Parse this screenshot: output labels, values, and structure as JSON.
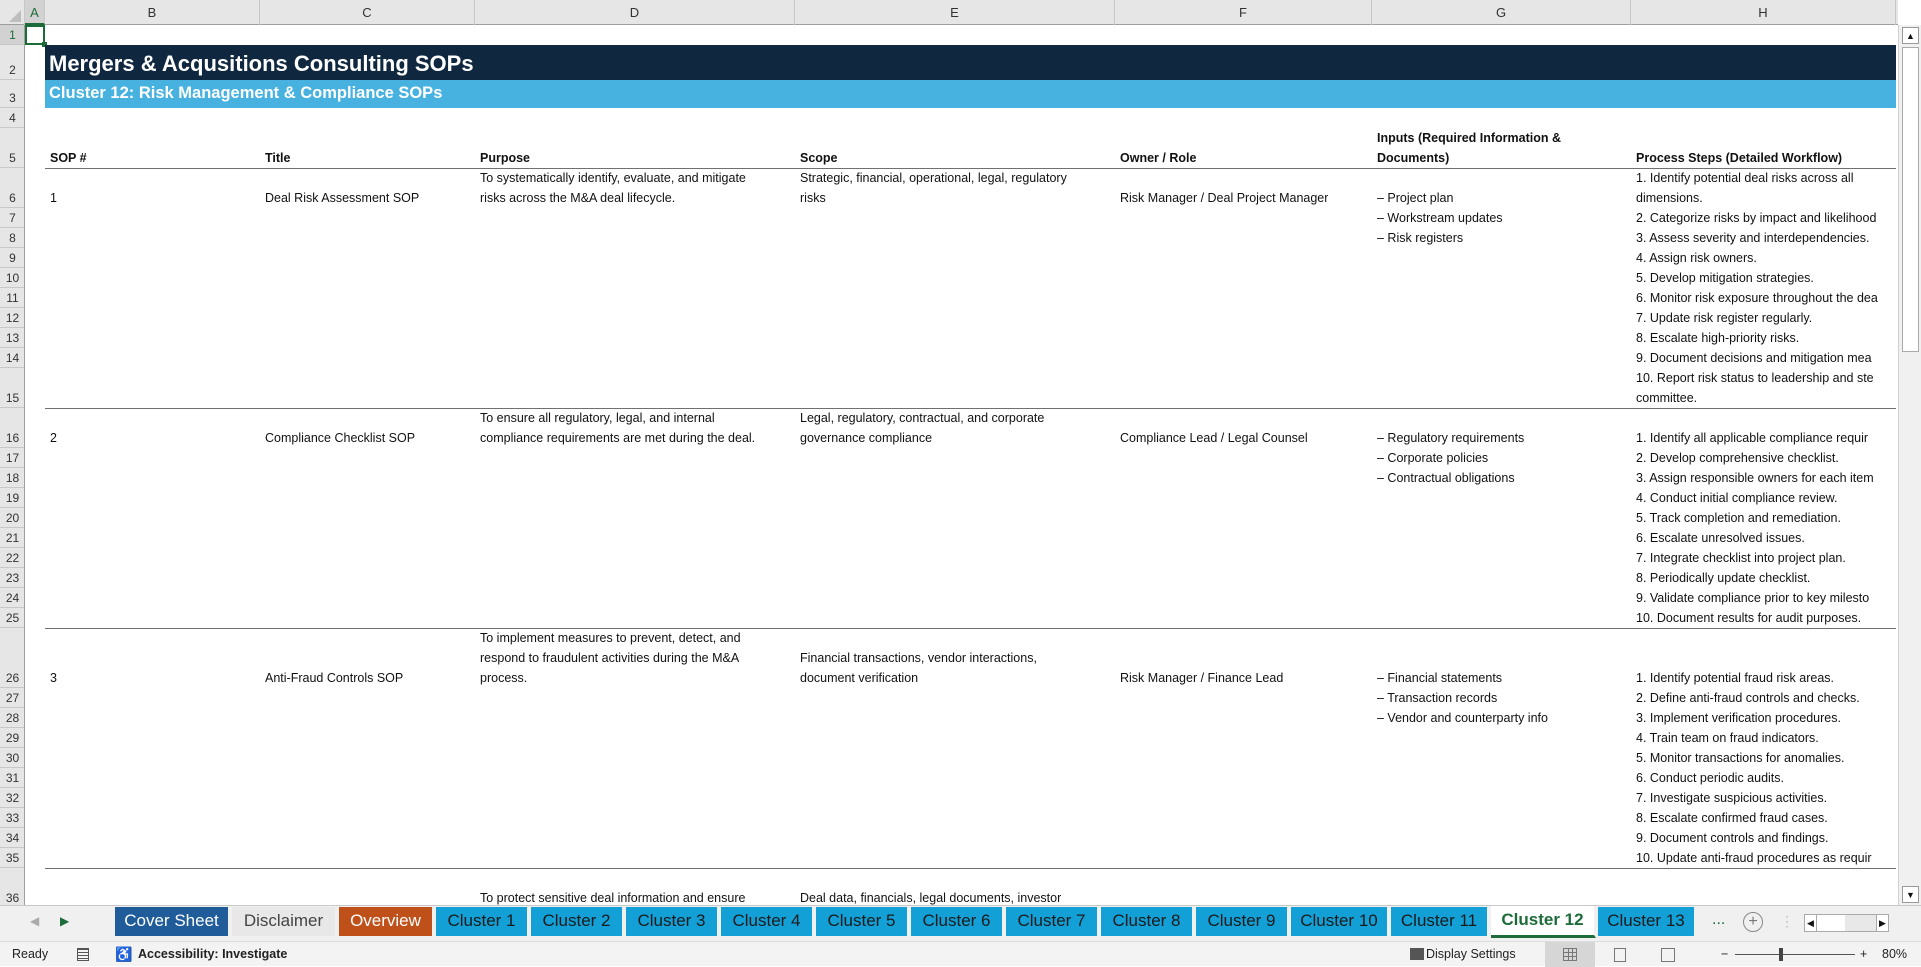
{
  "columns": [
    "A",
    "B",
    "C",
    "D",
    "E",
    "F",
    "G",
    "H"
  ],
  "rows": [
    "1",
    "2",
    "3",
    "4",
    "5",
    "6",
    "7",
    "8",
    "9",
    "10",
    "11",
    "12",
    "13",
    "14",
    "15",
    "16",
    "17",
    "18",
    "19",
    "20",
    "21",
    "22",
    "23",
    "24",
    "25",
    "26",
    "27",
    "28",
    "29",
    "30",
    "31",
    "32",
    "33",
    "34",
    "35",
    "36"
  ],
  "sheet": {
    "title": "Mergers & Acqusitions Consulting SOPs",
    "subtitle": "Cluster 12: Risk Management & Compliance SOPs",
    "colors": {
      "title_bg": "#10283f",
      "subtitle_bg": "#47b2e0"
    },
    "headers": [
      "SOP #",
      "Title",
      "Purpose",
      "Scope",
      "Owner / Role",
      "Inputs (Required Information &",
      "Documents)",
      "Process Steps (Detailed Workflow)"
    ],
    "sops": [
      {
        "number": "1",
        "title": "Deal Risk Assessment SOP",
        "purpose": [
          "To systematically identify, evaluate, and mitigate",
          "risks across the M&A deal lifecycle."
        ],
        "scope": [
          "Strategic, financial, operational, legal, regulatory",
          "risks"
        ],
        "owner": "Risk Manager / Deal Project Manager",
        "inputs": [
          "– Project plan",
          "– Workstream updates",
          "– Risk registers"
        ],
        "steps": [
          "1. Identify potential deal risks across all",
          "dimensions.",
          "2. Categorize risks by impact and likelihood",
          "3. Assess severity and interdependencies.",
          "4. Assign risk owners.",
          "5. Develop mitigation strategies.",
          "6. Monitor risk exposure throughout the dea",
          "7. Update risk register regularly.",
          "8. Escalate high-priority risks.",
          "9. Document decisions and mitigation mea",
          "10. Report risk status to leadership and ste",
          "committee."
        ]
      },
      {
        "number": "2",
        "title": "Compliance Checklist SOP",
        "purpose": [
          "To ensure all regulatory, legal, and internal",
          "compliance requirements are met during the deal."
        ],
        "scope": [
          "Legal, regulatory, contractual, and corporate",
          "governance compliance"
        ],
        "owner": "Compliance Lead / Legal Counsel",
        "inputs": [
          "– Regulatory requirements",
          "– Corporate policies",
          "– Contractual obligations"
        ],
        "steps": [
          "1. Identify all applicable compliance requir",
          "2. Develop comprehensive checklist.",
          "3. Assign responsible owners for each item",
          "4. Conduct initial compliance review.",
          "5. Track completion and remediation.",
          "6. Escalate unresolved issues.",
          "7. Integrate checklist into project plan.",
          "8. Periodically update checklist.",
          "9. Validate compliance prior to key milesto",
          "10. Document results for audit purposes."
        ]
      },
      {
        "number": "3",
        "title": "Anti-Fraud Controls SOP",
        "purpose": [
          "To implement measures to prevent, detect, and",
          "respond to fraudulent activities during the M&A",
          "process."
        ],
        "scope": [
          "Financial transactions, vendor interactions,",
          "document verification"
        ],
        "owner": "Risk Manager / Finance Lead",
        "inputs": [
          "– Financial statements",
          "– Transaction records",
          "– Vendor and counterparty info"
        ],
        "steps": [
          "1. Identify potential fraud risk areas.",
          "2. Define anti-fraud controls and checks.",
          "3. Implement verification procedures.",
          "4. Train team on fraud indicators.",
          "5. Monitor transactions for anomalies.",
          "6. Conduct periodic audits.",
          "7. Investigate suspicious activities.",
          "8. Escalate confirmed fraud cases.",
          "9. Document controls and findings.",
          "10. Update anti-fraud procedures as requir"
        ]
      },
      {
        "purpose": [
          "To protect sensitive deal information and ensure"
        ],
        "scope": [
          "Deal data, financials, legal documents, investor"
        ]
      }
    ]
  },
  "tabs": [
    {
      "label": "Cover Sheet",
      "bg": "#1f5c99",
      "fg": "#ffffff"
    },
    {
      "label": "Disclaimer",
      "bg": "#e8e8e8",
      "fg": "#444444"
    },
    {
      "label": "Overview",
      "bg": "#c0501a",
      "fg": "#ffffff"
    },
    {
      "label": "Cluster 1",
      "bg": "#12a0d7",
      "fg": "#1a1a1a"
    },
    {
      "label": "Cluster 2",
      "bg": "#12a0d7",
      "fg": "#1a1a1a"
    },
    {
      "label": "Cluster 3",
      "bg": "#12a0d7",
      "fg": "#1a1a1a"
    },
    {
      "label": "Cluster 4",
      "bg": "#12a0d7",
      "fg": "#1a1a1a"
    },
    {
      "label": "Cluster 5",
      "bg": "#12a0d7",
      "fg": "#1a1a1a"
    },
    {
      "label": "Cluster 6",
      "bg": "#12a0d7",
      "fg": "#1a1a1a"
    },
    {
      "label": "Cluster 7",
      "bg": "#12a0d7",
      "fg": "#1a1a1a"
    },
    {
      "label": "Cluster 8",
      "bg": "#12a0d7",
      "fg": "#1a1a1a"
    },
    {
      "label": "Cluster 9",
      "bg": "#12a0d7",
      "fg": "#1a1a1a"
    },
    {
      "label": "Cluster 10",
      "bg": "#12a0d7",
      "fg": "#1a1a1a"
    },
    {
      "label": "Cluster 11",
      "bg": "#12a0d7",
      "fg": "#1a1a1a"
    },
    {
      "label": "Cluster 12",
      "bg": "#ffffff",
      "fg": "#1e6b3a",
      "active": true
    },
    {
      "label": "Cluster 13",
      "bg": "#12a0d7",
      "fg": "#1a1a1a"
    }
  ],
  "tabbar": {
    "more": "...",
    "add_icon": "plus-circle-icon"
  },
  "status": {
    "ready": "Ready",
    "accessibility": "Accessibility: Investigate",
    "display_settings": "Display Settings",
    "zoom": "80%",
    "zoom_percent": 80
  }
}
